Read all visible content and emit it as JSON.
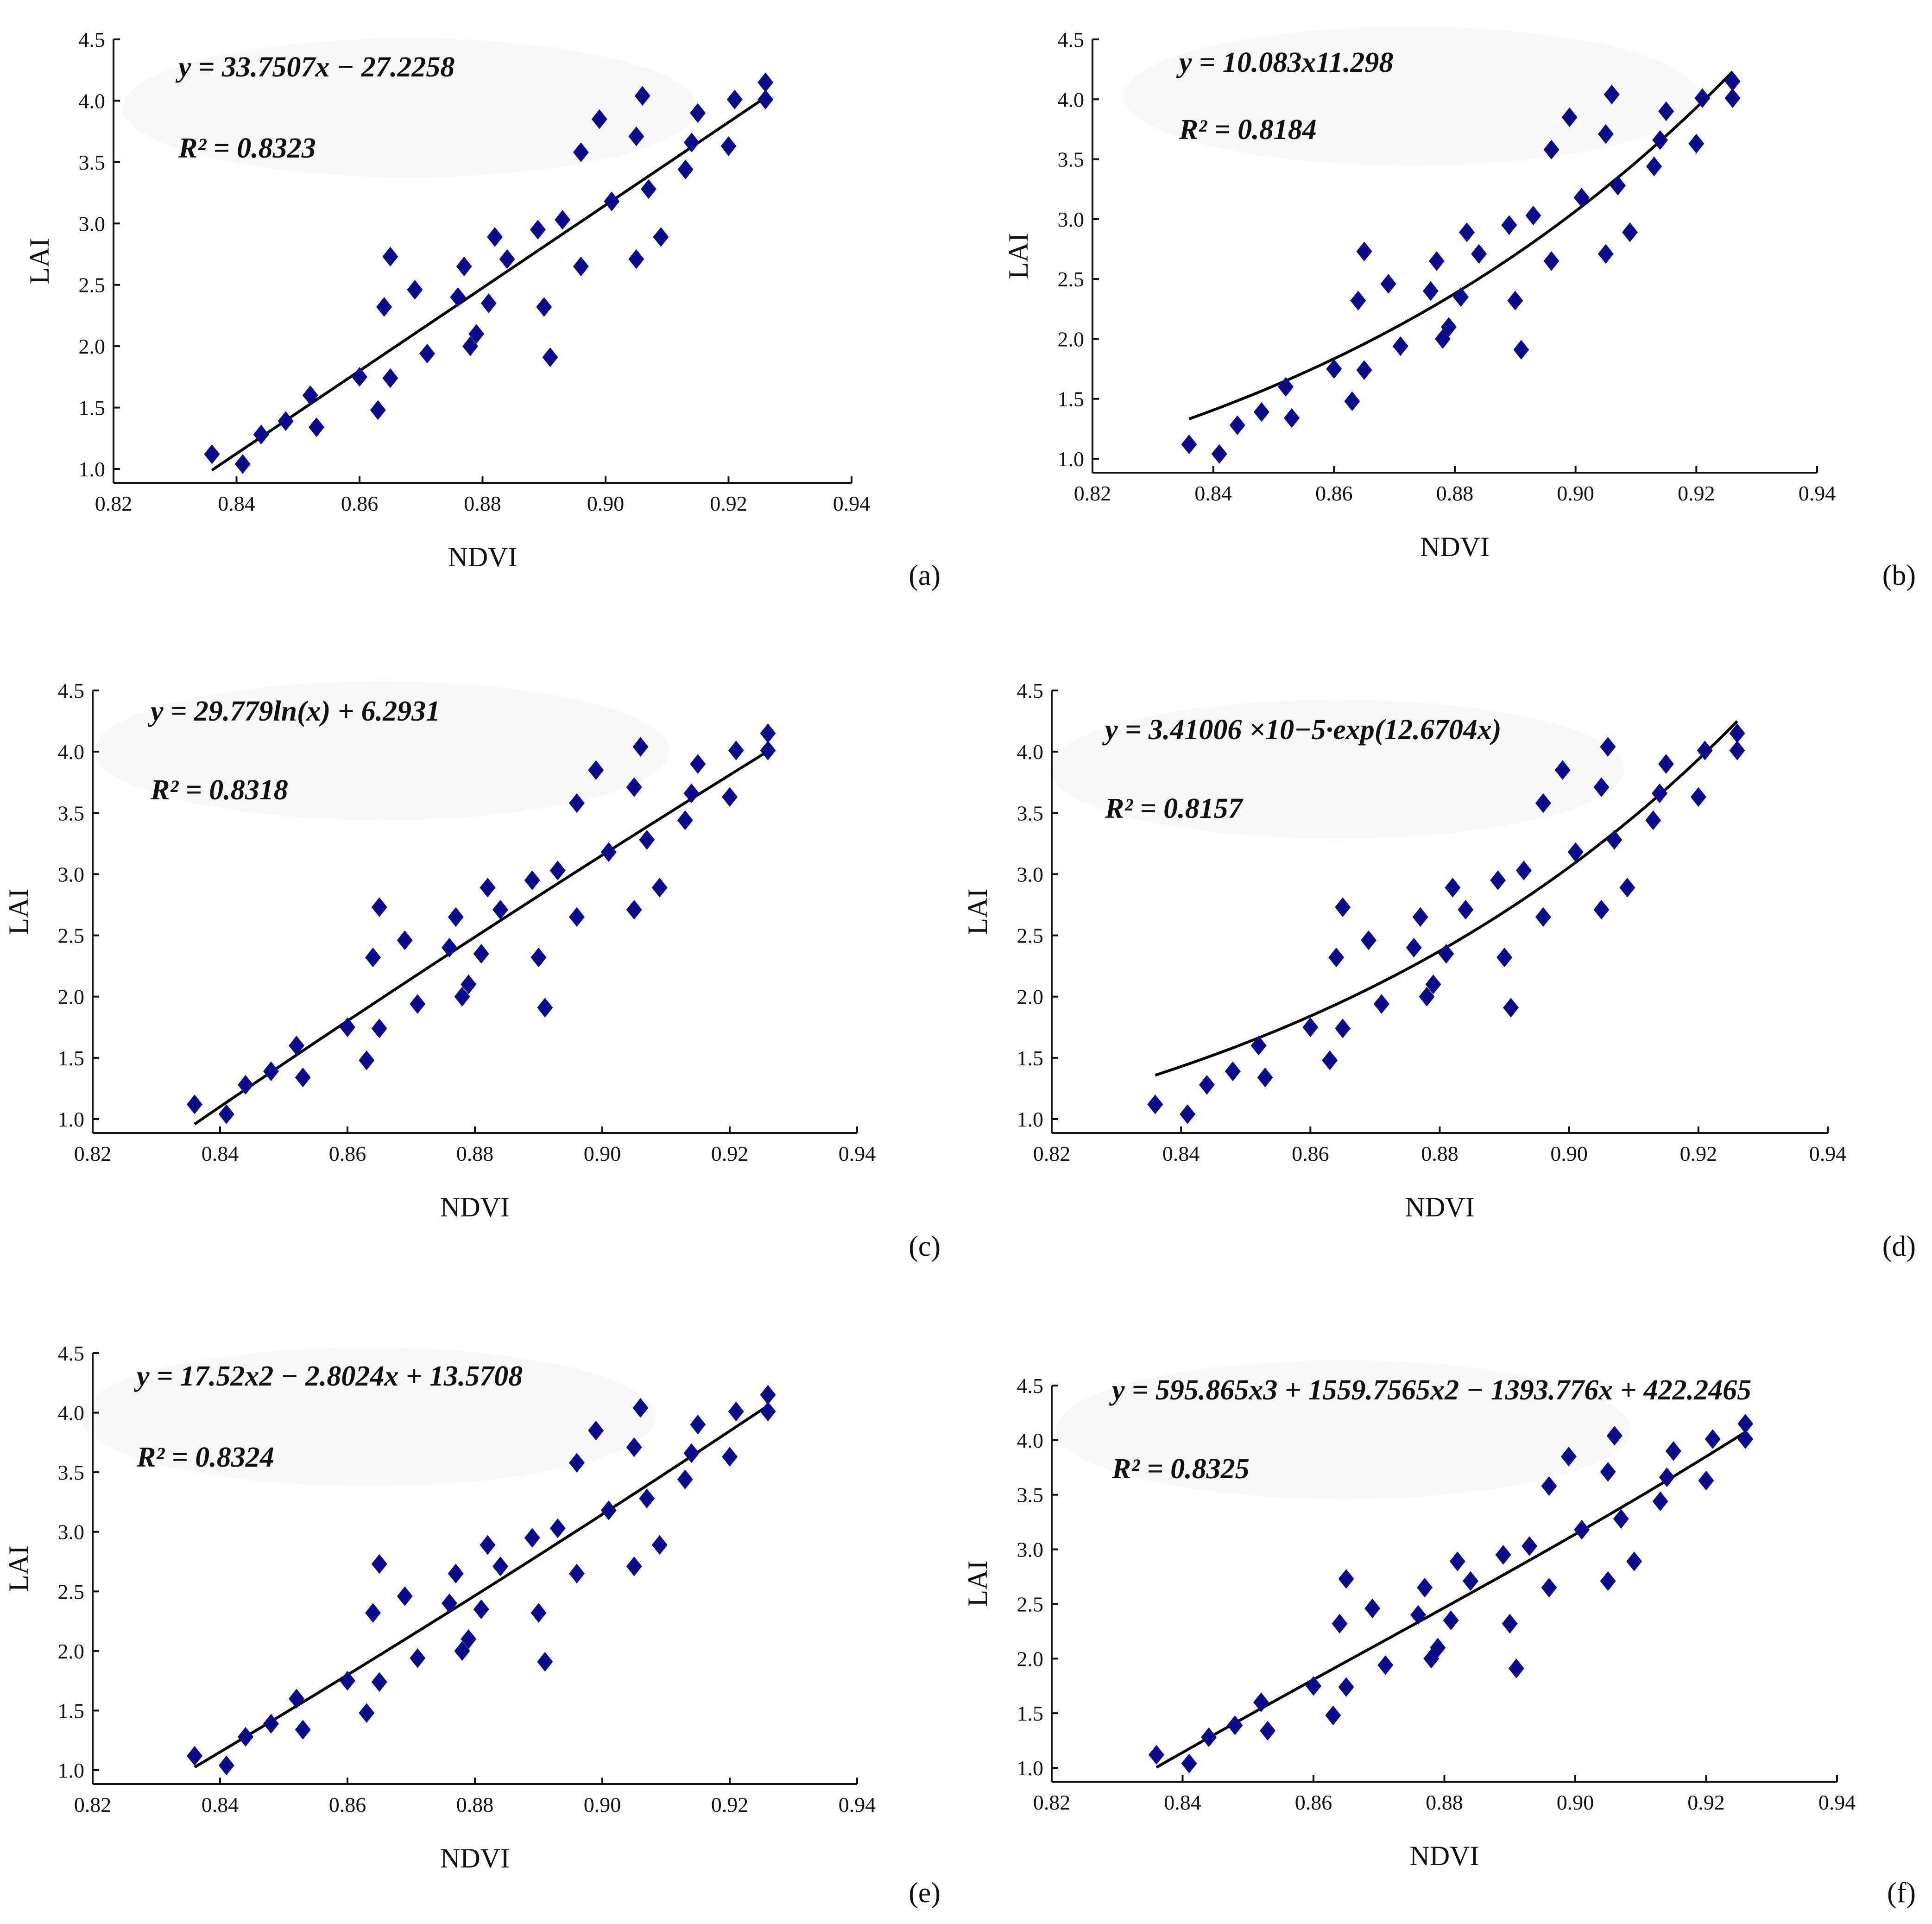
{
  "point_color": "#0b0b8a",
  "points": {
    "ndvi": [
      0.836,
      0.841,
      0.844,
      0.848,
      0.852,
      0.853,
      0.86,
      0.863,
      0.864,
      0.865,
      0.865,
      0.869,
      0.871,
      0.876,
      0.877,
      0.878,
      0.879,
      0.881,
      0.882,
      0.884,
      0.889,
      0.89,
      0.891,
      0.893,
      0.896,
      0.896,
      0.899,
      0.901,
      0.905,
      0.905,
      0.906,
      0.907,
      0.909,
      0.913,
      0.914,
      0.915,
      0.92,
      0.921,
      0.926,
      0.926
    ],
    "lai": [
      1.12,
      1.04,
      1.28,
      1.39,
      1.6,
      1.34,
      1.75,
      1.48,
      2.32,
      1.74,
      2.73,
      2.46,
      1.94,
      2.4,
      2.65,
      2.0,
      2.1,
      2.35,
      2.89,
      2.71,
      2.95,
      2.32,
      1.91,
      3.03,
      2.65,
      3.58,
      3.85,
      3.18,
      3.71,
      2.71,
      4.04,
      3.28,
      2.89,
      3.44,
      3.66,
      3.9,
      3.63,
      4.01,
      4.15,
      4.01
    ]
  },
  "chart_data": [
    {
      "type": "scatter",
      "panel": "(a)",
      "xlabel": "NDVI",
      "ylabel": "LAI",
      "xlim": [
        0.82,
        0.94
      ],
      "ylim": [
        1.0,
        4.5
      ],
      "xticks": [
        "0.82",
        "0.84",
        "0.86",
        "0.88",
        "0.90",
        "0.92",
        "0.94"
      ],
      "yticks": [
        "1.0",
        "1.5",
        "2.0",
        "2.5",
        "3.0",
        "3.5",
        "4.0",
        "4.5"
      ],
      "fit": "linear",
      "fit_range": [
        0.836,
        0.926
      ],
      "coefficients": [
        33.7507,
        -27.2258
      ],
      "r2": 0.8323,
      "equation": "y = 33.7507x − 27.2258",
      "r2_label": "R² = 0.8323"
    },
    {
      "type": "scatter",
      "panel": "(b)",
      "xlabel": "NDVI",
      "ylabel": "LAI",
      "xlim": [
        0.82,
        0.94
      ],
      "ylim": [
        1.0,
        4.5
      ],
      "xticks": [
        "0.82",
        "0.84",
        "0.86",
        "0.88",
        "0.90",
        "0.92",
        "0.94"
      ],
      "yticks": [
        "1.0",
        "1.5",
        "2.0",
        "2.5",
        "3.0",
        "3.5",
        "4.0",
        "4.5"
      ],
      "fit": "power",
      "fit_range": [
        0.836,
        0.926
      ],
      "coefficients": [
        10.083,
        11.298
      ],
      "r2": 0.8184,
      "equation": "y = 10.083x11.298",
      "r2_label": "R² = 0.8184"
    },
    {
      "type": "scatter",
      "panel": "(c)",
      "xlabel": "NDVI",
      "ylabel": "LAI",
      "xlim": [
        0.82,
        0.94
      ],
      "ylim": [
        1.0,
        4.5
      ],
      "xticks": [
        "0.82",
        "0.84",
        "0.86",
        "0.88",
        "0.90",
        "0.92",
        "0.94"
      ],
      "yticks": [
        "1.0",
        "1.5",
        "2.0",
        "2.5",
        "3.0",
        "3.5",
        "4.0",
        "4.5"
      ],
      "fit": "log",
      "fit_range": [
        0.836,
        0.926
      ],
      "coefficients": [
        29.779,
        6.2931
      ],
      "r2": 0.8318,
      "equation": "y = 29.779ln(x) + 6.2931",
      "r2_label": "R² = 0.8318"
    },
    {
      "type": "scatter",
      "panel": "(d)",
      "xlabel": "NDVI",
      "ylabel": "LAI",
      "xlim": [
        0.82,
        0.94
      ],
      "ylim": [
        1.0,
        4.5
      ],
      "xticks": [
        "0.82",
        "0.84",
        "0.86",
        "0.88",
        "0.90",
        "0.92",
        "0.94"
      ],
      "yticks": [
        "1.0",
        "1.5",
        "2.0",
        "2.5",
        "3.0",
        "3.5",
        "4.0",
        "4.5"
      ],
      "fit": "exponential",
      "fit_range": [
        0.836,
        0.926
      ],
      "coefficients": [
        3.41006e-05,
        12.6704
      ],
      "r2": 0.8157,
      "equation": "y =  3.41006 ×10−5·exp(12.6704x)",
      "r2_label": "R² = 0.8157"
    },
    {
      "type": "scatter",
      "panel": "(e)",
      "xlabel": "NDVI",
      "ylabel": "LAI",
      "xlim": [
        0.82,
        0.94
      ],
      "ylim": [
        1.0,
        4.5
      ],
      "xticks": [
        "0.82",
        "0.84",
        "0.86",
        "0.88",
        "0.90",
        "0.92",
        "0.94"
      ],
      "yticks": [
        "1.0",
        "1.5",
        "2.0",
        "2.5",
        "3.0",
        "3.5",
        "4.0",
        "4.5"
      ],
      "fit": "quadratic",
      "fit_range": [
        0.836,
        0.926
      ],
      "coefficients": [
        17.52,
        -2.8024,
        13.5708
      ],
      "r2": 0.8324,
      "equation": "y =  17.52x2 − 2.8024x + 13.5708",
      "r2_label": "R² = 0.8324"
    },
    {
      "type": "scatter",
      "panel": "(f)",
      "xlabel": "NDVI",
      "ylabel": "LAI",
      "xlim": [
        0.82,
        0.94
      ],
      "ylim": [
        1.0,
        4.5
      ],
      "xticks": [
        "0.82",
        "0.84",
        "0.86",
        "0.88",
        "0.90",
        "0.92",
        "0.94"
      ],
      "yticks": [
        "1.0",
        "1.5",
        "2.0",
        "2.5",
        "3.0",
        "3.5",
        "4.0",
        "4.5"
      ],
      "fit": "cubic",
      "fit_range": [
        0.836,
        0.926
      ],
      "coefficients": [
        595.865,
        1559.7565,
        -1393.776,
        422.2465
      ],
      "r2": 0.8325,
      "equation": "y = 595.865x3 + 1559.7565x2 − 1393.776x + 422.2465",
      "r2_label": "R² = 0.8325"
    }
  ]
}
